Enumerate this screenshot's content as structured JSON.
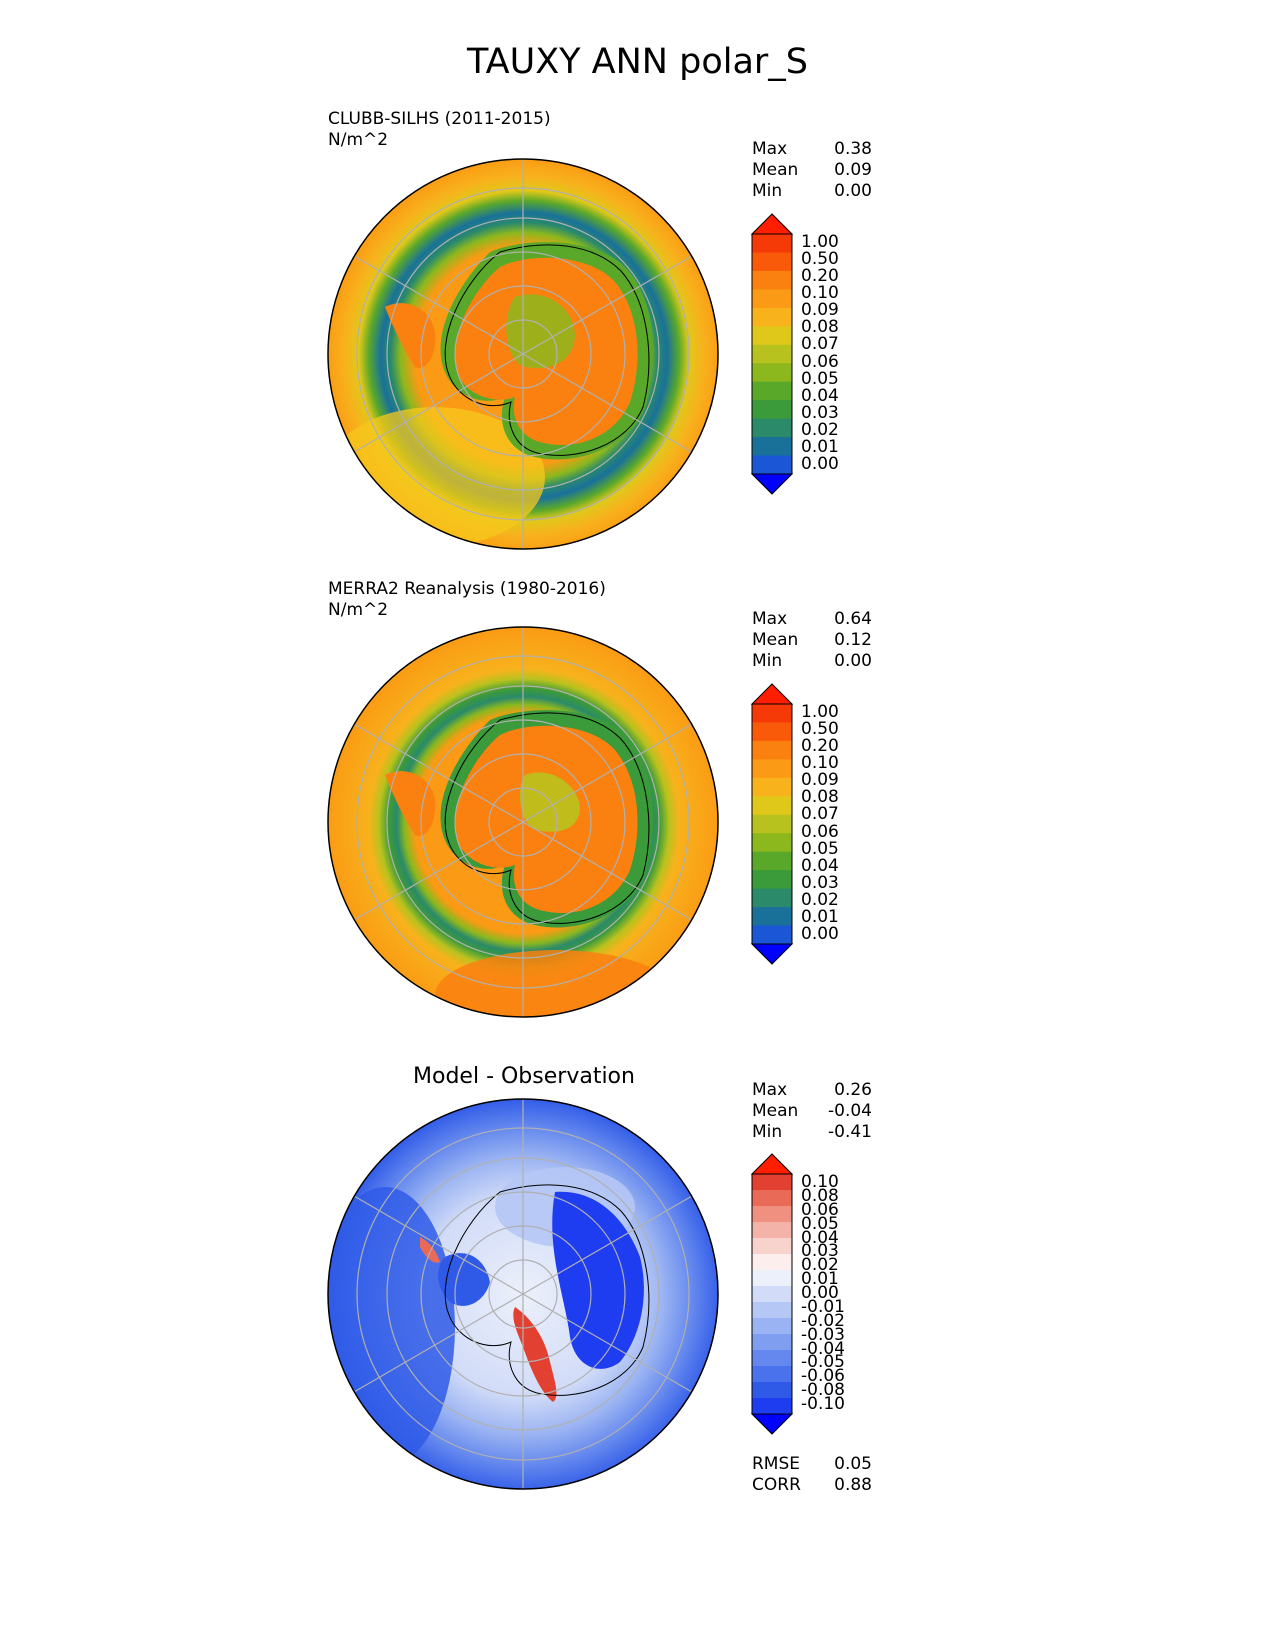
{
  "figure": {
    "title": "TAUXY ANN polar_S"
  },
  "panels": [
    {
      "id": "test",
      "title_line1": "CLUBB-SILHS (2011-2015)",
      "title_line2": "N/m^2",
      "stats": [
        {
          "label": "Max",
          "value": "0.38"
        },
        {
          "label": "Mean",
          "value": "0.09"
        },
        {
          "label": "Min",
          "value": "0.00"
        }
      ],
      "colorbar_ticks": [
        "1.00",
        "0.50",
        "0.20",
        "0.10",
        "0.09",
        "0.08",
        "0.07",
        "0.06",
        "0.05",
        "0.04",
        "0.03",
        "0.02",
        "0.01",
        "0.00"
      ]
    },
    {
      "id": "reference",
      "title_line1": "MERRA2 Reanalysis (1980-2016)",
      "title_line2": "N/m^2",
      "stats": [
        {
          "label": "Max",
          "value": "0.64"
        },
        {
          "label": "Mean",
          "value": "0.12"
        },
        {
          "label": "Min",
          "value": "0.00"
        }
      ],
      "colorbar_ticks": [
        "1.00",
        "0.50",
        "0.20",
        "0.10",
        "0.09",
        "0.08",
        "0.07",
        "0.06",
        "0.05",
        "0.04",
        "0.03",
        "0.02",
        "0.01",
        "0.00"
      ]
    },
    {
      "id": "diff",
      "title": "Model - Observation",
      "stats": [
        {
          "label": "Max",
          "value": "0.26"
        },
        {
          "label": "Mean",
          "value": "-0.04"
        },
        {
          "label": "Min",
          "value": "-0.41"
        }
      ],
      "colorbar_ticks": [
        "0.10",
        "0.08",
        "0.06",
        "0.05",
        "0.04",
        "0.03",
        "0.02",
        "0.01",
        "0.00",
        "-0.01",
        "-0.02",
        "-0.03",
        "-0.04",
        "-0.05",
        "-0.06",
        "-0.08",
        "-0.10"
      ],
      "metrics": [
        {
          "label": "RMSE",
          "value": "0.05"
        },
        {
          "label": "CORR",
          "value": "0.88"
        }
      ]
    }
  ],
  "colors": {
    "abs_scale": [
      "#0000ff",
      "#1a56d6",
      "#19719a",
      "#2a8a6a",
      "#3b9a3a",
      "#5aa82a",
      "#8cb81e",
      "#b8c21e",
      "#e0c81a",
      "#f7b21c",
      "#fb9a14",
      "#fa8010",
      "#f85a0a",
      "#f53a08",
      "#ff1e00"
    ],
    "diff_scale": [
      "#0000ff",
      "#1e3cf0",
      "#2f5ae8",
      "#4a72ec",
      "#6488ee",
      "#7f9ef0",
      "#9ab3f2",
      "#b5c7f5",
      "#d2dcf8",
      "#ecf0fb",
      "#fbeeec",
      "#f8d2cc",
      "#f4b3a8",
      "#f09080",
      "#ea6a58",
      "#e24030",
      "#ff1e00"
    ],
    "continent": "#000000",
    "grid": "#b0b0b0"
  },
  "chart_data": [
    {
      "type": "heatmap",
      "projection": "polar_south_stereographic",
      "title": "CLUBB-SILHS (2011-2015)",
      "units": "N/m^2",
      "levels": [
        0.0,
        0.01,
        0.02,
        0.03,
        0.04,
        0.05,
        0.06,
        0.07,
        0.08,
        0.09,
        0.1,
        0.2,
        0.5,
        1.0
      ],
      "max": 0.38,
      "mean": 0.09,
      "min": 0.0,
      "regions": [
        {
          "region": "outer ocean ring",
          "value": 0.1
        },
        {
          "region": "sea-ice margin band",
          "value": 0.02
        },
        {
          "region": "antarctic plateau",
          "value": 0.2
        },
        {
          "region": "south-west ocean sector",
          "value": 0.09
        }
      ]
    },
    {
      "type": "heatmap",
      "projection": "polar_south_stereographic",
      "title": "MERRA2 Reanalysis (1980-2016)",
      "units": "N/m^2",
      "levels": [
        0.0,
        0.01,
        0.02,
        0.03,
        0.04,
        0.05,
        0.06,
        0.07,
        0.08,
        0.09,
        0.1,
        0.2,
        0.5,
        1.0
      ],
      "max": 0.64,
      "mean": 0.12,
      "min": 0.0,
      "regions": [
        {
          "region": "outer ocean ring",
          "value": 0.1
        },
        {
          "region": "sea-ice margin band",
          "value": 0.03
        },
        {
          "region": "antarctic plateau",
          "value": 0.2
        },
        {
          "region": "south ocean sector",
          "value": 0.2
        }
      ]
    },
    {
      "type": "heatmap",
      "projection": "polar_south_stereographic",
      "title": "Model - Observation",
      "levels": [
        -0.1,
        -0.08,
        -0.06,
        -0.05,
        -0.04,
        -0.03,
        -0.02,
        -0.01,
        0.0,
        0.01,
        0.02,
        0.03,
        0.04,
        0.05,
        0.06,
        0.08,
        0.1
      ],
      "max": 0.26,
      "mean": -0.04,
      "min": -0.41,
      "rmse": 0.05,
      "corr": 0.88,
      "regions": [
        {
          "region": "outer ocean ring",
          "value": -0.08
        },
        {
          "region": "mid ocean ring",
          "value": -0.03
        },
        {
          "region": "east antarctic interior",
          "value": -0.1
        },
        {
          "region": "transantarctic mountains",
          "value": 0.1
        },
        {
          "region": "antarctic peninsula coast",
          "value": 0.05
        }
      ]
    }
  ]
}
